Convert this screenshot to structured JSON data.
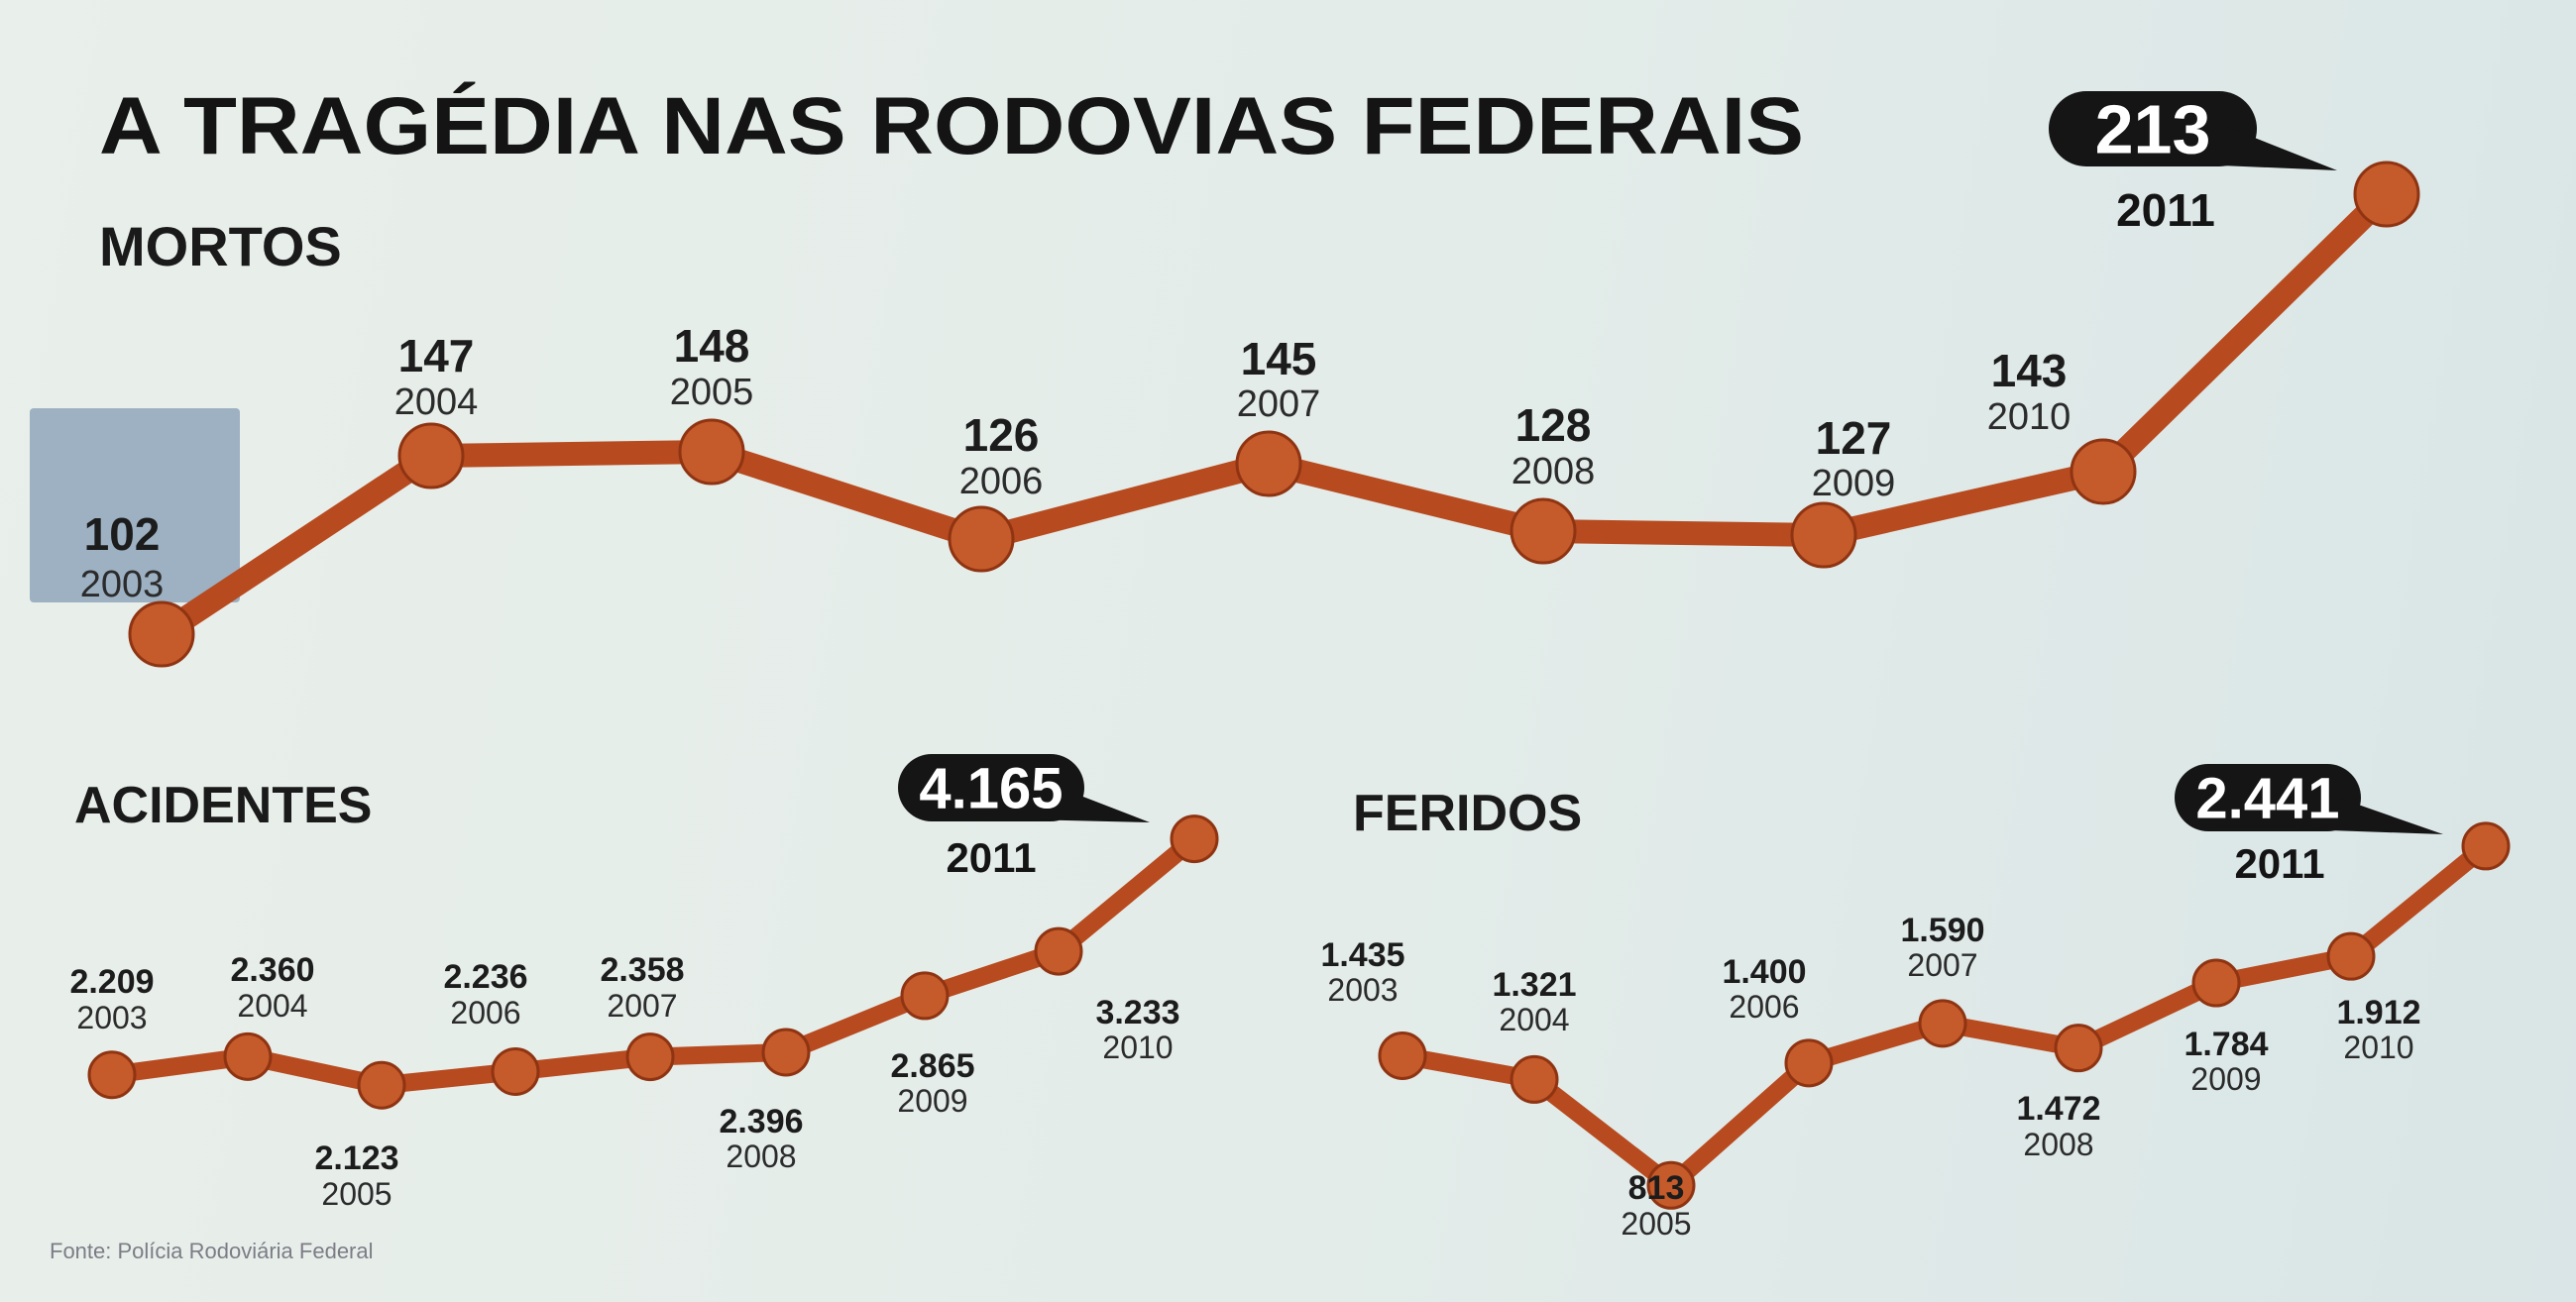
{
  "title": "A TRAGÉDIA NAS RODOVIAS FEDERAIS",
  "source": "Fonte: Polícia Rodoviária Federal",
  "colors": {
    "line": "#b84a1f",
    "marker": "#c55a2a",
    "callout": "#151515",
    "highlight_box": "#8fa6bc"
  },
  "chart_data": [
    {
      "type": "line",
      "title": "MORTOS",
      "x": [
        "2003",
        "2004",
        "2005",
        "2006",
        "2007",
        "2008",
        "2009",
        "2010",
        "2011"
      ],
      "values": [
        102,
        147,
        148,
        126,
        145,
        128,
        127,
        143,
        213
      ],
      "labels": [
        "102",
        "147",
        "148",
        "126",
        "145",
        "128",
        "127",
        "143",
        "213"
      ],
      "highlight": {
        "value": "213",
        "year": "2011"
      }
    },
    {
      "type": "line",
      "title": "ACIDENTES",
      "x": [
        "2003",
        "2004",
        "2005",
        "2006",
        "2007",
        "2008",
        "2009",
        "2010",
        "2011"
      ],
      "values": [
        2209,
        2360,
        2123,
        2236,
        2358,
        2396,
        2865,
        3233,
        4165
      ],
      "labels": [
        "2.209",
        "2.360",
        "2.123",
        "2.236",
        "2.358",
        "2.396",
        "2.865",
        "3.233",
        "4.165"
      ],
      "highlight": {
        "value": "4.165",
        "year": "2011"
      }
    },
    {
      "type": "line",
      "title": "FERIDOS",
      "x": [
        "2003",
        "2004",
        "2005",
        "2006",
        "2007",
        "2008",
        "2009",
        "2010",
        "2011"
      ],
      "values": [
        1435,
        1321,
        813,
        1400,
        1590,
        1472,
        1784,
        1912,
        2441
      ],
      "labels": [
        "1.435",
        "1.321",
        "813",
        "1.400",
        "1.590",
        "1.472",
        "1.784",
        "1.912",
        "2.441"
      ],
      "highlight": {
        "value": "2.441",
        "year": "2011"
      }
    }
  ]
}
